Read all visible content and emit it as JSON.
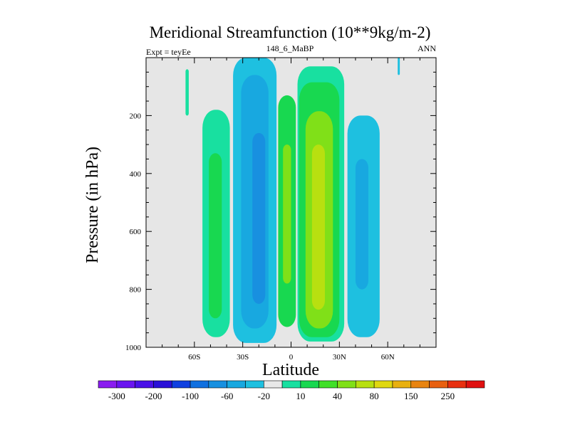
{
  "chart_data": {
    "type": "heatmap",
    "title": "Meridional Streamfunction (10**9kg/m-2)",
    "left_label": "Expt = teyEe",
    "center_label": "148_6_MaBP",
    "right_label": "ANN",
    "xlabel": "Latitude",
    "ylabel": "Pressure (in hPa)",
    "xlim": [
      -90,
      90
    ],
    "ylim": [
      1000,
      0
    ],
    "x_ticks": [
      {
        "value": -60,
        "label": "60S"
      },
      {
        "value": -30,
        "label": "30S"
      },
      {
        "value": 0,
        "label": "0"
      },
      {
        "value": 30,
        "label": "30N"
      },
      {
        "value": 60,
        "label": "60N"
      }
    ],
    "y_ticks": [
      {
        "value": 200,
        "label": "200"
      },
      {
        "value": 400,
        "label": "400"
      },
      {
        "value": 600,
        "label": "600"
      },
      {
        "value": 800,
        "label": "800"
      },
      {
        "value": 1000,
        "label": "1000"
      }
    ],
    "background_color": "#e6e6e6",
    "colorbar": {
      "colors": [
        "#8a1cf0",
        "#6a14f0",
        "#4a10e8",
        "#2a10d8",
        "#1040e0",
        "#1070e0",
        "#1890e0",
        "#18a8e0",
        "#1ec0e0",
        "#e8e8e8",
        "#18e0a0",
        "#18d850",
        "#40e028",
        "#80e018",
        "#b8e010",
        "#e0d810",
        "#e8b010",
        "#e88410",
        "#e86010",
        "#e83010",
        "#e01010"
      ],
      "labels": [
        "-300",
        "-200",
        "-100",
        "-60",
        "-20",
        "10",
        "40",
        "80",
        "150",
        "250"
      ]
    },
    "cells": [
      {
        "name": "nh-polar-sliver",
        "lat": [
          -65.5,
          -63.5
        ],
        "p": [
          40,
          200
        ],
        "color": "#18e0a0"
      },
      {
        "name": "sh-ferrel-cell",
        "lat": [
          -55,
          -38
        ],
        "p": [
          180,
          965
        ],
        "color": "#18e0a0"
      },
      {
        "name": "sh-ferrel-core",
        "lat": [
          -51,
          -43
        ],
        "p": [
          330,
          900
        ],
        "color": "#18d850"
      },
      {
        "name": "sh-hadley-outer",
        "lat": [
          -36,
          -9
        ],
        "p": [
          0,
          985
        ],
        "color": "#1ec0e0"
      },
      {
        "name": "sh-hadley-inner",
        "lat": [
          -31,
          -14
        ],
        "p": [
          60,
          935
        ],
        "color": "#18a8e0"
      },
      {
        "name": "sh-hadley-core",
        "lat": [
          -24,
          -16
        ],
        "p": [
          260,
          850
        ],
        "color": "#1890e0"
      },
      {
        "name": "equatorial-outer",
        "lat": [
          -8,
          3
        ],
        "p": [
          130,
          930
        ],
        "color": "#18d850"
      },
      {
        "name": "equatorial-core",
        "lat": [
          -5,
          0
        ],
        "p": [
          300,
          780
        ],
        "color": "#80e018"
      },
      {
        "name": "nh-hadley-outer",
        "lat": [
          4,
          33
        ],
        "p": [
          30,
          980
        ],
        "color": "#18e0a0"
      },
      {
        "name": "nh-hadley-mid",
        "lat": [
          5,
          30
        ],
        "p": [
          85,
          965
        ],
        "color": "#18d850"
      },
      {
        "name": "nh-hadley-inner",
        "lat": [
          9,
          26
        ],
        "p": [
          185,
          935
        ],
        "color": "#80e018"
      },
      {
        "name": "nh-hadley-core",
        "lat": [
          13,
          21
        ],
        "p": [
          300,
          870
        ],
        "color": "#b8e010"
      },
      {
        "name": "nh-ferrel-cell",
        "lat": [
          35,
          55
        ],
        "p": [
          200,
          965
        ],
        "color": "#1ec0e0"
      },
      {
        "name": "nh-ferrel-core",
        "lat": [
          40,
          48
        ],
        "p": [
          350,
          800
        ],
        "color": "#18a8e0"
      },
      {
        "name": "sh-polar-sliver",
        "lat": [
          66.2,
          67.5
        ],
        "p": [
          0,
          60
        ],
        "color": "#1ec0e0"
      }
    ]
  }
}
